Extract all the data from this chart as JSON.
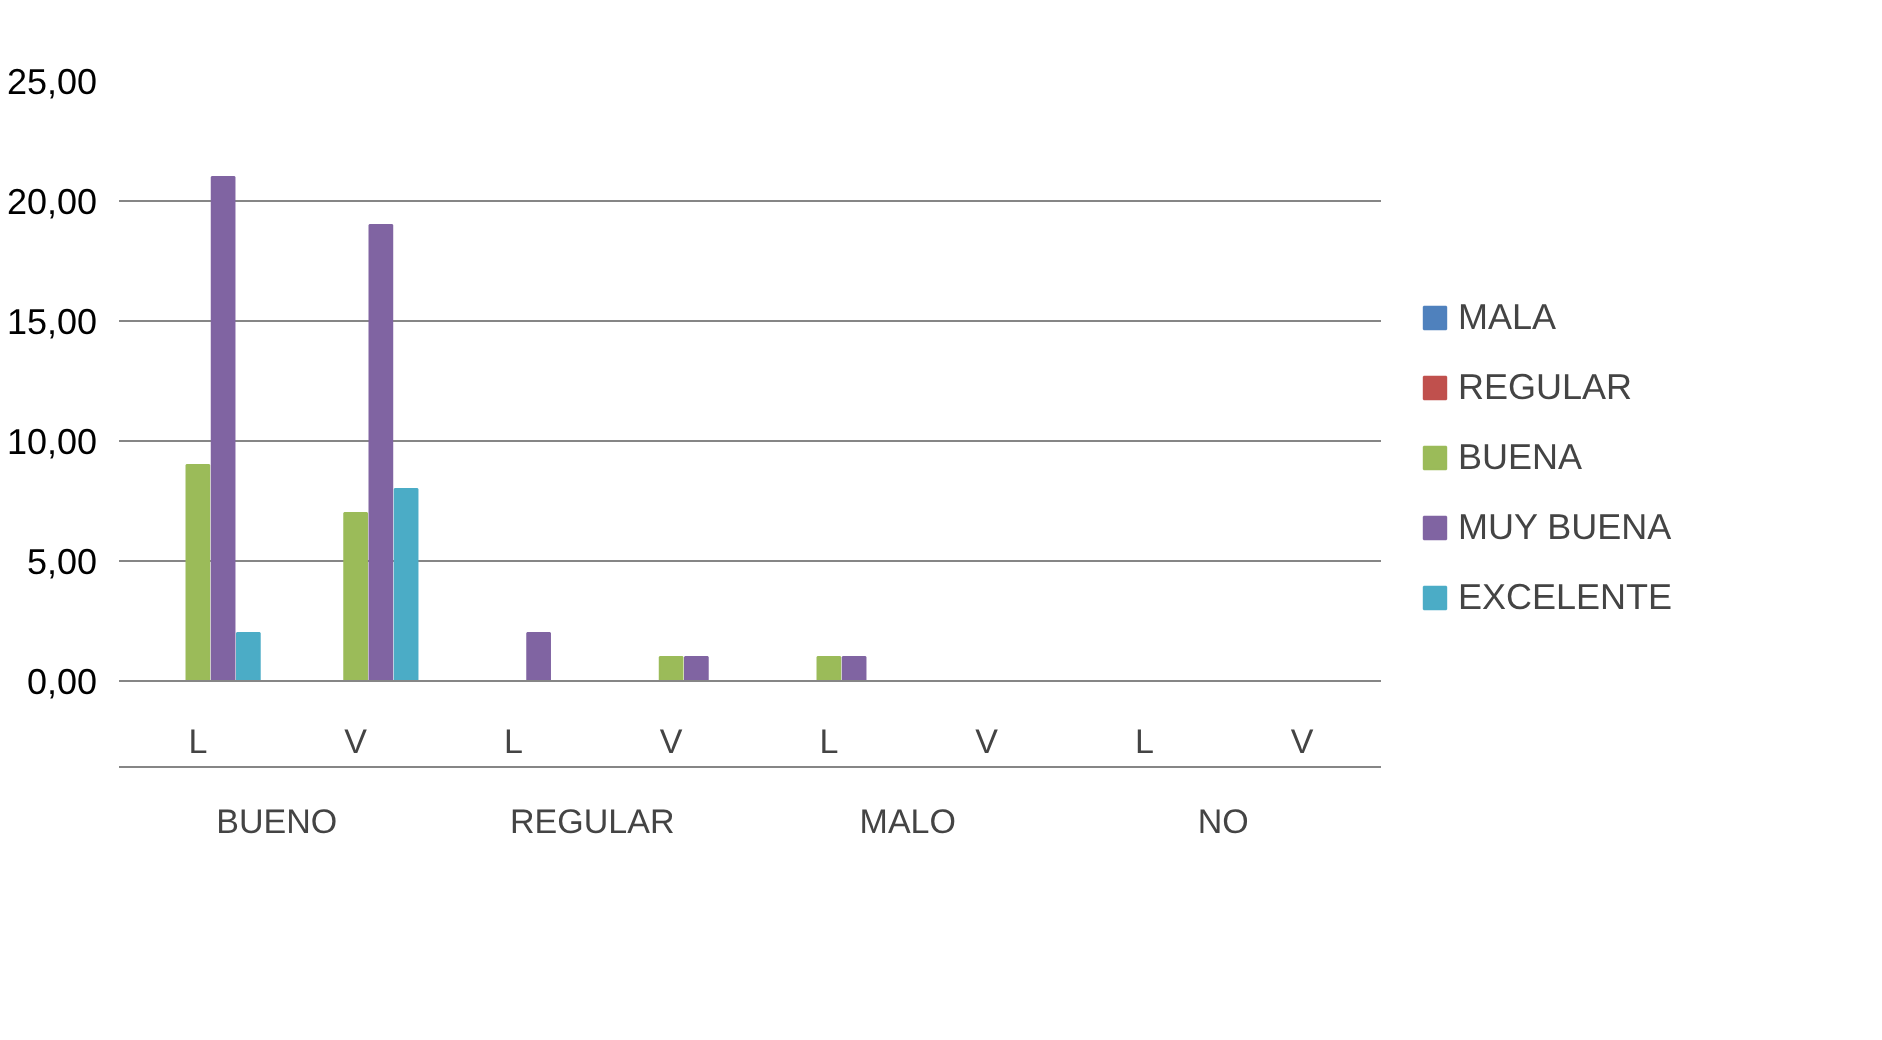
{
  "chart_data": {
    "type": "bar",
    "categories": [
      "L",
      "V",
      "L",
      "V",
      "L",
      "V",
      "L",
      "V"
    ],
    "annotations": [
      "BUENO",
      "REGULAR",
      "MALO",
      "NO"
    ],
    "series": [
      {
        "name": "MALA",
        "color": "#4f81bd",
        "values": [
          0,
          0,
          0,
          0,
          0,
          0,
          0,
          0
        ]
      },
      {
        "name": "REGULAR",
        "color": "#c0504d",
        "values": [
          0,
          0,
          0,
          0,
          0,
          0,
          0,
          0
        ]
      },
      {
        "name": "BUENA",
        "color": "#9bbb59",
        "values": [
          9,
          7,
          0,
          1,
          1,
          0,
          0,
          0
        ]
      },
      {
        "name": "MUY BUENA",
        "color": "#8064a2",
        "values": [
          21,
          19,
          2,
          1,
          1,
          0,
          0,
          0
        ]
      },
      {
        "name": "EXCELENTE",
        "color": "#4bacc6",
        "values": [
          2,
          8,
          0,
          0,
          0,
          0,
          0,
          0
        ]
      }
    ],
    "ylim": [
      0,
      25
    ],
    "yticks": [
      {
        "value": 0,
        "label": "0,00"
      },
      {
        "value": 5,
        "label": "5,00"
      },
      {
        "value": 10,
        "label": "10,00"
      },
      {
        "value": 15,
        "label": "15,00"
      },
      {
        "value": 20,
        "label": "20,00"
      },
      {
        "value": 25,
        "label": "25,00"
      }
    ],
    "grid": "y",
    "legend": "right"
  }
}
